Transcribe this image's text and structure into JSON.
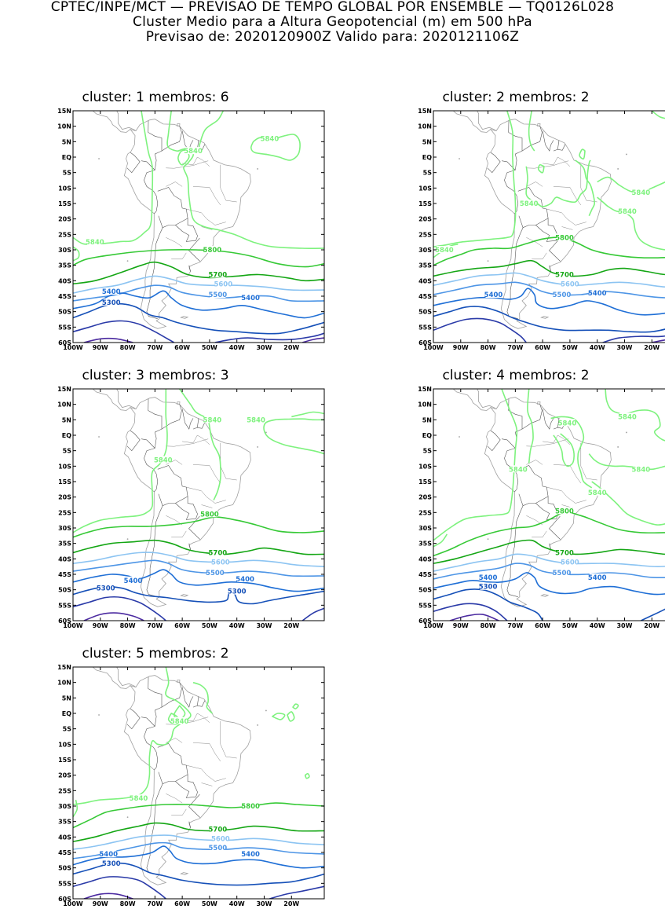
{
  "header": {
    "line1": "CPTEC/INPE/MCT — PREVISAO DE TEMPO GLOBAL POR ENSEMBLE — TQ0126L028",
    "line2": "Cluster Medio para a Altura Geopotencial (m) em 500 hPa",
    "line3": "Previsao de: 2020120900Z    Valido para: 2020121106Z"
  },
  "axes": {
    "lat_labels": [
      "15N",
      "10N",
      "5N",
      "EQ",
      "5S",
      "10S",
      "15S",
      "20S",
      "25S",
      "30S",
      "35S",
      "40S",
      "45S",
      "50S",
      "55S",
      "60S"
    ],
    "lon_labels": [
      "100W",
      "90W",
      "80W",
      "70W",
      "60W",
      "50W",
      "40W",
      "30W",
      "20W"
    ]
  },
  "colors": {
    "c5840": "#7ef27e",
    "c5800": "#36c936",
    "c5700": "#14a614",
    "c5600": "#8cc4f2",
    "c5500": "#4d95e6",
    "c5400": "#1f6fd6",
    "c5300": "#1550b8",
    "c5200": "#2a3aa8",
    "c5100": "#4b2aa0",
    "coast": "#a0a0a0"
  },
  "panels": [
    {
      "title": "cluster: 1   membros: 6",
      "labels": [
        {
          "text": "5840",
          "lon": -28,
          "lat": 6,
          "color": "c5840"
        },
        {
          "text": "5840",
          "lon": -56,
          "lat": 2,
          "color": "c5840"
        },
        {
          "text": "5840",
          "lon": -92,
          "lat": -27.5,
          "color": "c5840"
        },
        {
          "text": "5800",
          "lon": -49,
          "lat": -30,
          "color": "c5800"
        },
        {
          "text": "5700",
          "lon": -47,
          "lat": -38,
          "color": "c5700"
        },
        {
          "text": "5600",
          "lon": -45,
          "lat": -41,
          "color": "c5600"
        },
        {
          "text": "5500",
          "lon": -47,
          "lat": -44.5,
          "color": "c5500"
        },
        {
          "text": "5400",
          "lon": -86,
          "lat": -43.5,
          "color": "c5400"
        },
        {
          "text": "5400",
          "lon": -35,
          "lat": -45.5,
          "color": "c5400"
        },
        {
          "text": "5300",
          "lon": -86,
          "lat": -47,
          "color": "c5300"
        }
      ]
    },
    {
      "title": "cluster: 2   membros: 2",
      "labels": [
        {
          "text": "5840",
          "lon": -24,
          "lat": -11.5,
          "color": "c5840"
        },
        {
          "text": "5840",
          "lon": -29,
          "lat": -17.5,
          "color": "c5840"
        },
        {
          "text": "5840",
          "lon": -65,
          "lat": -15,
          "color": "c5840"
        },
        {
          "text": "5840",
          "lon": -96,
          "lat": -30,
          "color": "c5840"
        },
        {
          "text": "5800",
          "lon": -52,
          "lat": -26,
          "color": "c5800"
        },
        {
          "text": "5700",
          "lon": -52,
          "lat": -38,
          "color": "c5700"
        },
        {
          "text": "5600",
          "lon": -50,
          "lat": -41,
          "color": "c5600"
        },
        {
          "text": "5500",
          "lon": -53,
          "lat": -44.5,
          "color": "c5500"
        },
        {
          "text": "5400",
          "lon": -78,
          "lat": -44.5,
          "color": "c5400"
        },
        {
          "text": "5400",
          "lon": -40,
          "lat": -44,
          "color": "c5400"
        }
      ]
    },
    {
      "title": "cluster: 3   membros: 3",
      "labels": [
        {
          "text": "5840",
          "lon": -49,
          "lat": 5,
          "color": "c5840"
        },
        {
          "text": "5840",
          "lon": -33,
          "lat": 5,
          "color": "c5840"
        },
        {
          "text": "5840",
          "lon": -67,
          "lat": -8,
          "color": "c5840"
        },
        {
          "text": "5800",
          "lon": -50,
          "lat": -25.5,
          "color": "c5800"
        },
        {
          "text": "5700",
          "lon": -47,
          "lat": -38,
          "color": "c5700"
        },
        {
          "text": "5600",
          "lon": -46,
          "lat": -41,
          "color": "c5600"
        },
        {
          "text": "5500",
          "lon": -48,
          "lat": -44.5,
          "color": "c5500"
        },
        {
          "text": "5400",
          "lon": -78,
          "lat": -47,
          "color": "c5400"
        },
        {
          "text": "5400",
          "lon": -37,
          "lat": -46.5,
          "color": "c5400"
        },
        {
          "text": "5300",
          "lon": -88,
          "lat": -49.5,
          "color": "c5300"
        },
        {
          "text": "5300",
          "lon": -40,
          "lat": -50.5,
          "color": "c5300"
        }
      ]
    },
    {
      "title": "cluster: 4   membros: 2",
      "labels": [
        {
          "text": "5840",
          "lon": -51,
          "lat": 4,
          "color": "c5840"
        },
        {
          "text": "5840",
          "lon": -29,
          "lat": 6,
          "color": "c5840"
        },
        {
          "text": "5840",
          "lon": -24,
          "lat": -11,
          "color": "c5840"
        },
        {
          "text": "5840",
          "lon": -69,
          "lat": -11,
          "color": "c5840"
        },
        {
          "text": "5840",
          "lon": -40,
          "lat": -18.5,
          "color": "c5840"
        },
        {
          "text": "5800",
          "lon": -52,
          "lat": -24.5,
          "color": "c5800"
        },
        {
          "text": "5700",
          "lon": -52,
          "lat": -38,
          "color": "c5700"
        },
        {
          "text": "5600",
          "lon": -50,
          "lat": -41,
          "color": "c5600"
        },
        {
          "text": "5500",
          "lon": -53,
          "lat": -44.5,
          "color": "c5500"
        },
        {
          "text": "5400",
          "lon": -80,
          "lat": -46,
          "color": "c5400"
        },
        {
          "text": "5400",
          "lon": -40,
          "lat": -46,
          "color": "c5400"
        },
        {
          "text": "5300",
          "lon": -80,
          "lat": -49,
          "color": "c5300"
        }
      ]
    },
    {
      "title": "cluster: 5   membros: 2",
      "labels": [
        {
          "text": "5840",
          "lon": -61,
          "lat": -2.5,
          "color": "c5840"
        },
        {
          "text": "5840",
          "lon": -76,
          "lat": -27.5,
          "color": "c5840"
        },
        {
          "text": "5800",
          "lon": -35,
          "lat": -30,
          "color": "c5800"
        },
        {
          "text": "5700",
          "lon": -47,
          "lat": -37.5,
          "color": "c5700"
        },
        {
          "text": "5600",
          "lon": -46,
          "lat": -40.5,
          "color": "c5600"
        },
        {
          "text": "5500",
          "lon": -47,
          "lat": -43.5,
          "color": "c5500"
        },
        {
          "text": "5400",
          "lon": -87,
          "lat": -45.5,
          "color": "c5400"
        },
        {
          "text": "5400",
          "lon": -35,
          "lat": -45.5,
          "color": "c5400"
        },
        {
          "text": "5300",
          "lon": -86,
          "lat": -48.5,
          "color": "c5300"
        }
      ]
    }
  ]
}
